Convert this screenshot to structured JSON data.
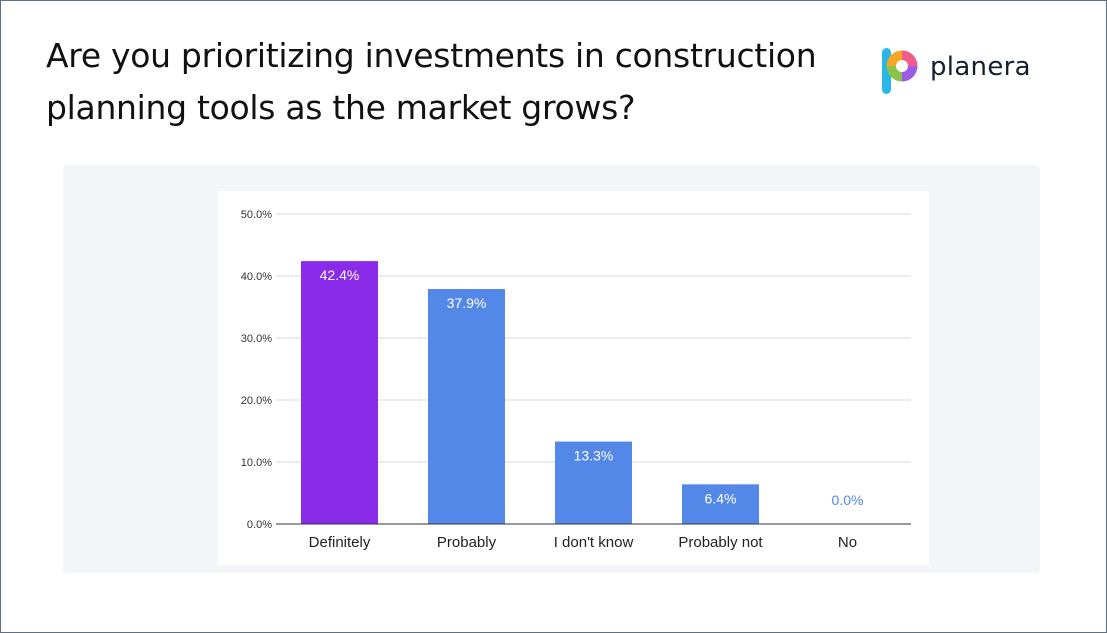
{
  "header": {
    "title": "Are you prioritizing investments in construction planning tools as the market grows?"
  },
  "brand": {
    "name": "planera",
    "icon": "planera-logo-icon"
  },
  "colors": {
    "highlight": "#8a2be9",
    "bar": "#5488e8",
    "label_on_bar": "#ffffff",
    "label_outside": "#5488e8",
    "grid": "#d8d8d8",
    "axis": "#333333"
  },
  "chart_data": {
    "type": "bar",
    "categories": [
      "Definitely",
      "Probably",
      "I don't know",
      "Probably not",
      "No"
    ],
    "values": [
      42.4,
      37.9,
      13.3,
      6.4,
      0.0
    ],
    "value_labels": [
      "42.4%",
      "37.9%",
      "13.3%",
      "6.4%",
      "0.0%"
    ],
    "highlight_index": 0,
    "ylim": [
      0,
      50
    ],
    "yticks": [
      0,
      10,
      20,
      30,
      40,
      50
    ],
    "ytick_labels": [
      "0.0%",
      "10.0%",
      "20.0%",
      "30.0%",
      "40.0%",
      "50.0%"
    ],
    "grid": true,
    "legend": "none"
  }
}
